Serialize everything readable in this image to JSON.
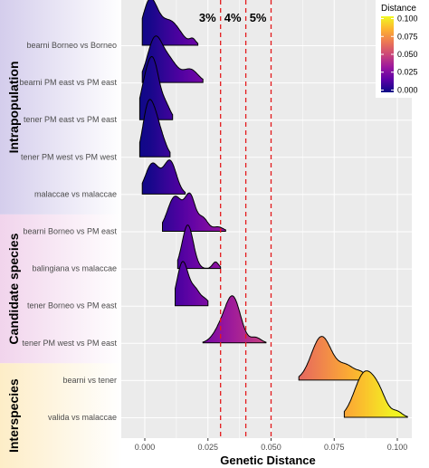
{
  "chart_data": {
    "type": "ridgeline",
    "xlabel": "Genetic Distance",
    "ylabel": "",
    "xlim": [
      -0.009,
      0.104
    ],
    "x_ticks": [
      "0.000",
      "0.025",
      "0.050",
      "0.075",
      "0.100"
    ],
    "x_tick_values": [
      0.0,
      0.025,
      0.05,
      0.075,
      0.1
    ],
    "reference_lines": [
      {
        "x": 0.03,
        "label": "3%"
      },
      {
        "x": 0.04,
        "label": "4%"
      },
      {
        "x": 0.05,
        "label": "5%"
      }
    ],
    "groups": [
      {
        "label": "Intrapopulation",
        "color": "#d4cdec",
        "rows": [
          0,
          4
        ]
      },
      {
        "label": "Candidate species",
        "color": "#f1d4ec",
        "rows": [
          5,
          8
        ]
      },
      {
        "label": "Interspecies",
        "color": "#fdedc7",
        "rows": [
          9,
          10
        ]
      }
    ],
    "series": [
      {
        "name": "bearni Borneo vs Borneo",
        "peaks": [
          [
            0.002,
            0.003,
            1.0
          ],
          [
            0.01,
            0.004,
            0.55
          ],
          [
            0.019,
            0.0012,
            0.12
          ]
        ],
        "range": [
          -0.001,
          0.021
        ]
      },
      {
        "name": "bearni PM east vs PM east",
        "peaks": [
          [
            0.004,
            0.003,
            1.0
          ],
          [
            0.01,
            0.003,
            0.45
          ],
          [
            0.018,
            0.003,
            0.3
          ],
          [
            0.028,
            0.0008,
            0.04
          ]
        ],
        "range": [
          -0.001,
          0.023
        ]
      },
      {
        "name": "tener PM east vs PM east",
        "peaks": [
          [
            0.001,
            0.0025,
            1.0
          ],
          [
            0.004,
            0.002,
            0.8
          ],
          [
            0.008,
            0.002,
            0.35
          ]
        ],
        "range": [
          -0.002,
          0.011
        ]
      },
      {
        "name": "tener PM west vs PM west",
        "peaks": [
          [
            0.001,
            0.002,
            1.0
          ],
          [
            0.004,
            0.002,
            0.7
          ],
          [
            0.007,
            0.002,
            0.3
          ]
        ],
        "range": [
          -0.002,
          0.01
        ]
      },
      {
        "name": "malaccae vs malaccae",
        "peaks": [
          [
            0.003,
            0.0028,
            0.7
          ],
          [
            0.01,
            0.0025,
            0.75
          ]
        ],
        "range": [
          -0.001,
          0.016
        ]
      },
      {
        "name": "bearni Borneo vs PM east",
        "peaks": [
          [
            0.012,
            0.003,
            0.8
          ],
          [
            0.018,
            0.002,
            0.75
          ],
          [
            0.023,
            0.002,
            0.3
          ],
          [
            0.029,
            0.002,
            0.1
          ]
        ],
        "range": [
          0.007,
          0.032
        ]
      },
      {
        "name": "balingiana vs malaccae",
        "peaks": [
          [
            0.017,
            0.0022,
            1.0
          ],
          [
            0.028,
            0.0012,
            0.15
          ]
        ],
        "range": [
          0.013,
          0.03
        ]
      },
      {
        "name": "tener Borneo vs PM east",
        "peaks": [
          [
            0.015,
            0.0022,
            1.0
          ],
          [
            0.02,
            0.002,
            0.35
          ],
          [
            0.024,
            0.0015,
            0.12
          ]
        ],
        "range": [
          0.012,
          0.025
        ]
      },
      {
        "name": "tener PM west vs PM east",
        "peaks": [
          [
            0.035,
            0.003,
            1.0
          ],
          [
            0.03,
            0.003,
            0.3
          ],
          [
            0.044,
            0.002,
            0.12
          ]
        ],
        "range": [
          0.023,
          0.048
        ]
      },
      {
        "name": "bearni vs tener",
        "peaks": [
          [
            0.07,
            0.004,
            1.0
          ],
          [
            0.08,
            0.0035,
            0.32
          ],
          [
            0.086,
            0.002,
            0.12
          ]
        ],
        "range": [
          0.061,
          0.09
        ]
      },
      {
        "name": "valida vs malaccae",
        "peaks": [
          [
            0.087,
            0.004,
            1.0
          ],
          [
            0.093,
            0.003,
            0.4
          ],
          [
            0.1,
            0.002,
            0.12
          ]
        ],
        "range": [
          0.079,
          0.104
        ]
      }
    ],
    "legend": {
      "title": "Distance",
      "ticks": [
        "0.100",
        "0.075",
        "0.050",
        "0.025",
        "0.000"
      ],
      "tick_values": [
        0.1,
        0.075,
        0.05,
        0.025,
        0.0
      ],
      "placement": "top-right",
      "colors": [
        "#0d0887",
        "#5c01a6",
        "#9c179e",
        "#cc4778",
        "#ed7953",
        "#fdb42f",
        "#f0f921"
      ]
    },
    "panel_background": "#ebebeb",
    "gridline_color": "#ffffff",
    "reference_line_color": "#e41a1c"
  }
}
